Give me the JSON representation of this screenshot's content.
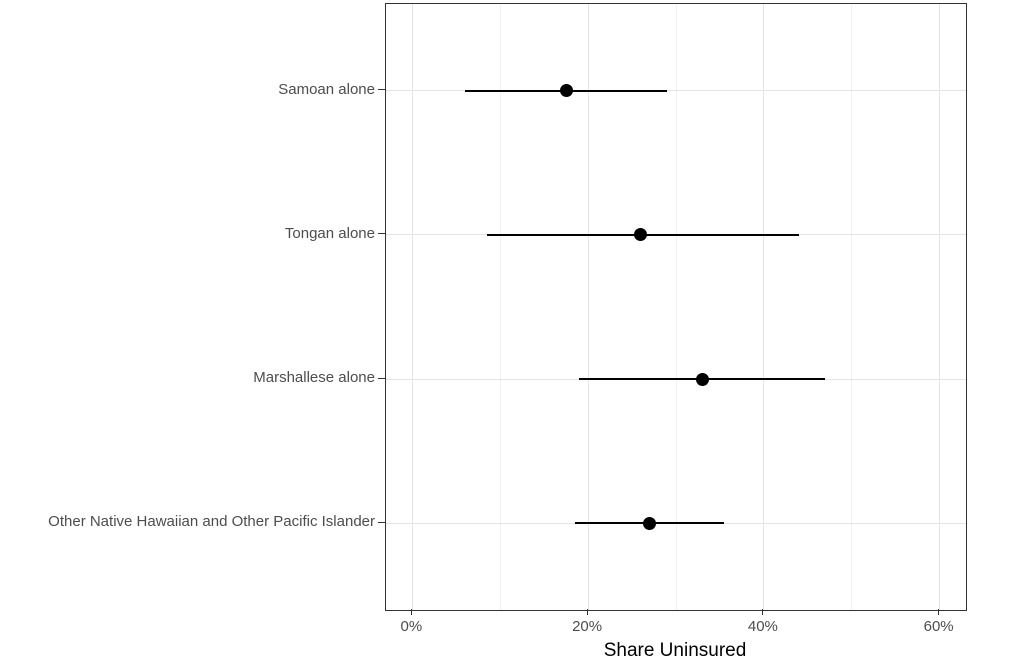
{
  "chart_data": {
    "type": "scatter",
    "subtype": "dot-plot-with-horizontal-error-bars",
    "title": "",
    "xlabel": "Share Uninsured",
    "ylabel": "",
    "grid": true,
    "legend": "none",
    "x_axis": {
      "tick_labels": [
        "0%",
        "20%",
        "40%",
        "60%"
      ],
      "ticks_major": [
        0,
        20,
        40,
        60
      ],
      "ticks_minor": [
        10,
        30,
        50
      ],
      "xlim_data": [
        0,
        60
      ],
      "xlim_expanded": [
        -3,
        63
      ],
      "unit": "percent"
    },
    "categories": [
      "Samoan alone",
      "Tongan alone",
      "Marshallese alone",
      "Other Native Hawaiian and Other Pacific Islander"
    ],
    "series": [
      {
        "name": "Share Uninsured",
        "points": [
          {
            "category": "Samoan alone",
            "estimate": 17.5,
            "ci_low": 6,
            "ci_high": 29
          },
          {
            "category": "Tongan alone",
            "estimate": 26,
            "ci_low": 8.5,
            "ci_high": 44
          },
          {
            "category": "Marshallese alone",
            "estimate": 33,
            "ci_low": 19,
            "ci_high": 47
          },
          {
            "category": "Other Native Hawaiian and Other Pacific Islander",
            "estimate": 27,
            "ci_low": 18.5,
            "ci_high": 35.5
          }
        ]
      }
    ],
    "colors": {
      "point": "#000000",
      "error_bar": "#000000",
      "panel_border": "#333333",
      "grid_major": "#e4e4e4",
      "grid_minor": "#f1f1f1",
      "axis_text": "#4d4d4d",
      "axis_title": "#000000",
      "background": "#ffffff"
    }
  }
}
